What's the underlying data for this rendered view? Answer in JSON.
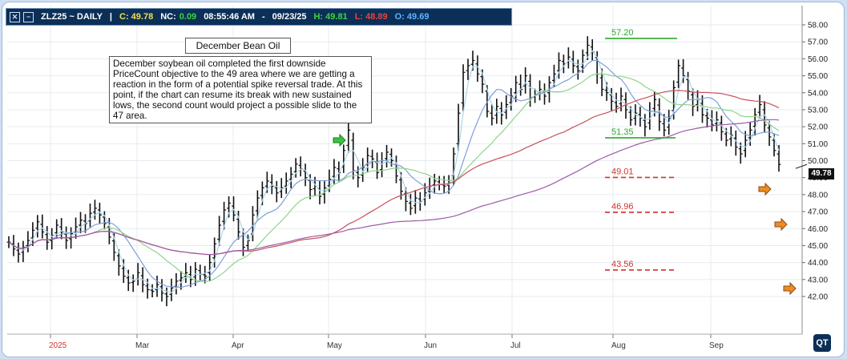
{
  "header": {
    "symbol": "ZLZ25 ~ DAILY",
    "sep": "|",
    "close": "C: 49.78",
    "nc_label": "NC:",
    "nc_value": "0.09",
    "time": "08:55:46 AM",
    "dash": "-",
    "date": "09/23/25",
    "high": "H: 49.81",
    "low": "L: 48.89",
    "open": "O: 49.69",
    "colors": {
      "bg": "#0b2f57",
      "close": "#f4e04d",
      "nc": "#3cd63c",
      "high": "#3cd63c",
      "low": "#e8433a",
      "open": "#5fb4ff"
    }
  },
  "annotation": {
    "title": "December Bean Oil",
    "text": "December soybean oil completed the first downside PriceCount objective to the 49 area where we are getting a reaction in the form of a potential spike reversal trade.  At this point, if the chart can resume its break with new sustained lows, the second count would project a possible slide to the 47 area."
  },
  "last_price": "49.78",
  "logo_text": "QT",
  "chart_data": {
    "type": "candlestick",
    "y_axis": {
      "min": 42.0,
      "max": 58.0,
      "ticks": [
        "42.00",
        "43.00",
        "44.00",
        "45.00",
        "46.00",
        "47.00",
        "48.00",
        "49.00",
        "50.00",
        "51.00",
        "52.00",
        "53.00",
        "54.00",
        "55.00",
        "56.00",
        "57.00",
        "58.00"
      ]
    },
    "x_tick_labels": [
      "2025",
      "Mar",
      "Apr",
      "May",
      "Jun",
      "Jul",
      "Aug",
      "Sep"
    ],
    "levels": [
      {
        "label": "57.20",
        "value": 57.2,
        "color": "#2ea82e",
        "style": "solid"
      },
      {
        "label": "51.35",
        "value": 51.35,
        "color": "#2ea82e",
        "style": "solid"
      },
      {
        "label": "49.01",
        "value": 49.01,
        "color": "#d0342c",
        "style": "dashed"
      },
      {
        "label": "46.96",
        "value": 46.96,
        "color": "#d0342c",
        "style": "dashed"
      },
      {
        "label": "43.56",
        "value": 43.56,
        "color": "#d0342c",
        "style": "dashed"
      }
    ],
    "bars_close": [
      45.2,
      44.8,
      44.5,
      44.9,
      45.3,
      45.9,
      46.4,
      45.8,
      45.2,
      45.6,
      46.2,
      45.8,
      45.3,
      45.7,
      46.1,
      46.5,
      46.3,
      46.9,
      47.2,
      46.8,
      46.3,
      45.5,
      44.6,
      43.8,
      43.2,
      42.8,
      42.9,
      43.4,
      42.7,
      42.4,
      42.3,
      42.7,
      42.2,
      42.0,
      42.5,
      42.9,
      43.1,
      43.4,
      43.0,
      43.6,
      43.3,
      43.2,
      44.0,
      45.1,
      46.2,
      47.1,
      47.5,
      46.8,
      45.8,
      44.9,
      45.3,
      46.8,
      47.8,
      48.4,
      48.8,
      48.5,
      48.1,
      48.4,
      48.8,
      49.2,
      49.8,
      49.5,
      49.0,
      48.3,
      48.5,
      47.9,
      48.4,
      48.9,
      49.6,
      49.3,
      50.6,
      51.8,
      49.4,
      49.0,
      49.6,
      50.3,
      50.1,
      49.3,
      50.0,
      50.5,
      50.0,
      49.1,
      48.2,
      47.6,
      47.2,
      47.8,
      47.6,
      48.1,
      48.5,
      48.8,
      48.6,
      48.5,
      48.7,
      50.4,
      52.8,
      55.2,
      55.6,
      55.9,
      55.1,
      54.5,
      52.9,
      52.5,
      53.2,
      52.7,
      53.3,
      53.8,
      54.6,
      54.2,
      55.0,
      53.7,
      53.9,
      54.2,
      53.8,
      54.6,
      55.1,
      55.9,
      55.7,
      56.1,
      55.6,
      55.3,
      56.2,
      56.8,
      56.4,
      55.1,
      54.2,
      54.0,
      53.5,
      53.2,
      53.8,
      53.0,
      52.4,
      52.8,
      52.5,
      52.0,
      52.9,
      53.6,
      52.3,
      51.8,
      52.5,
      54.3,
      55.6,
      55.0,
      54.1,
      53.2,
      53.6,
      52.7,
      52.5,
      52.1,
      52.4,
      51.7,
      51.2,
      51.5,
      50.8,
      50.4,
      51.2,
      51.8,
      52.7,
      53.3,
      52.1,
      51.4,
      50.6,
      49.78
    ]
  }
}
